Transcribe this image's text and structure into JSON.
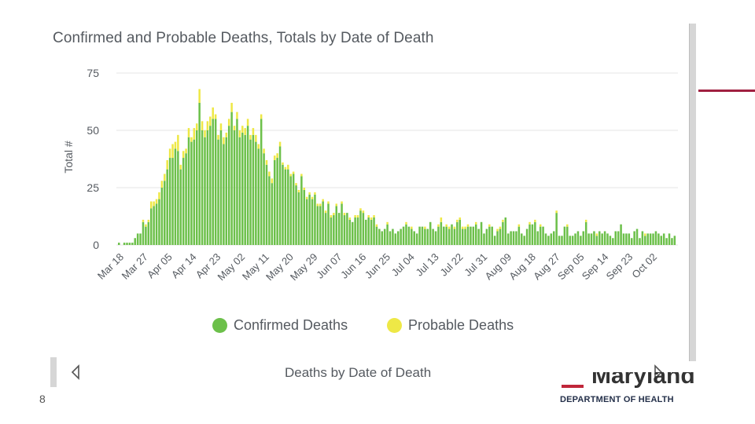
{
  "slide": {
    "page_number": "8",
    "org_word": "Maryland",
    "department": "DEPARTMENT OF HEALTH"
  },
  "tableau": {
    "tab_caption": "Deaths by Date of Death",
    "prev_icon": "triangle-left-outline",
    "next_icon": "triangle-right-outline"
  },
  "colors": {
    "confirmed": "#6cc04a",
    "probable": "#eee846",
    "grid": "#e5e5e5",
    "text": "#555a60",
    "accent": "#a02040"
  },
  "chart_data": {
    "type": "bar",
    "stacked": true,
    "title": "Confirmed and Probable Deaths, Totals by Date of Death",
    "xlabel": "",
    "ylabel": "Total #",
    "ylim": [
      0,
      75
    ],
    "yticks": [
      0,
      25,
      50,
      75
    ],
    "grid": true,
    "legend_position": "bottom",
    "x_start": "Mar 18",
    "x_end": "Oct 07",
    "x_tick_labels": [
      "Mar 18",
      "Mar 27",
      "Apr 05",
      "Apr 14",
      "Apr 23",
      "May 02",
      "May 11",
      "May 20",
      "May 29",
      "Jun 07",
      "Jun 16",
      "Jun 25",
      "Jul 04",
      "Jul 13",
      "Jul 22",
      "Jul 31",
      "Aug 09",
      "Aug 18",
      "Aug 27",
      "Sep 05",
      "Sep 14",
      "Sep 23",
      "Oct 02"
    ],
    "series": [
      {
        "name": "Confirmed Deaths",
        "values": [
          1,
          0,
          1,
          1,
          1,
          1,
          3,
          5,
          5,
          10,
          8,
          10,
          16,
          17,
          18,
          20,
          25,
          28,
          33,
          38,
          38,
          42,
          41,
          33,
          38,
          40,
          47,
          45,
          46,
          50,
          62,
          50,
          47,
          50,
          52,
          55,
          55,
          46,
          50,
          44,
          47,
          52,
          58,
          50,
          55,
          47,
          49,
          48,
          52,
          46,
          48,
          45,
          42,
          55,
          40,
          35,
          30,
          27,
          37,
          38,
          43,
          35,
          33,
          33,
          30,
          31,
          26,
          23,
          30,
          24,
          20,
          22,
          20,
          22,
          17,
          17,
          19,
          14,
          18,
          12,
          13,
          17,
          14,
          18,
          13,
          14,
          11,
          10,
          12,
          12,
          15,
          14,
          11,
          12,
          11,
          12,
          8,
          7,
          6,
          7,
          9,
          6,
          7,
          5,
          6,
          7,
          8,
          9,
          8,
          7,
          6,
          5,
          8,
          8,
          7,
          7,
          10,
          7,
          6,
          8,
          10,
          8,
          8,
          7,
          9,
          7,
          10,
          11,
          7,
          7,
          8,
          8,
          8,
          9,
          7,
          10,
          5,
          7,
          8,
          8,
          4,
          6,
          7,
          10,
          12,
          5,
          6,
          6,
          6,
          8,
          5,
          4,
          7,
          9,
          9,
          10,
          6,
          8,
          8,
          5,
          4,
          5,
          6,
          14,
          4,
          4,
          8,
          8,
          4,
          4,
          5,
          6,
          4,
          6,
          10,
          5,
          5,
          6,
          4,
          6,
          5,
          6,
          5,
          4,
          3,
          6,
          6,
          9,
          5,
          5,
          5,
          3,
          6,
          7,
          3,
          6,
          4,
          5,
          5,
          5,
          6,
          5,
          4,
          5,
          3,
          5,
          3,
          4
        ],
        "color": "#6cc04a"
      },
      {
        "name": "Probable Deaths",
        "values": [
          0,
          0,
          0,
          0,
          0,
          0,
          0,
          0,
          0,
          1,
          1,
          1,
          3,
          2,
          2,
          3,
          3,
          3,
          4,
          4,
          6,
          3,
          7,
          2,
          3,
          2,
          4,
          2,
          5,
          3,
          6,
          4,
          3,
          4,
          4,
          5,
          2,
          2,
          3,
          3,
          2,
          3,
          4,
          2,
          3,
          3,
          3,
          3,
          3,
          2,
          3,
          3,
          2,
          2,
          2,
          2,
          2,
          2,
          2,
          2,
          2,
          1,
          1,
          2,
          1,
          1,
          1,
          1,
          1,
          1,
          1,
          1,
          1,
          1,
          1,
          1,
          1,
          1,
          1,
          1,
          1,
          1,
          0,
          1,
          1,
          0,
          1,
          0,
          1,
          1,
          1,
          1,
          0,
          1,
          1,
          1,
          1,
          0,
          0,
          0,
          1,
          0,
          0,
          0,
          0,
          0,
          0,
          1,
          0,
          1,
          0,
          0,
          0,
          0,
          1,
          0,
          0,
          0,
          0,
          1,
          2,
          0,
          1,
          1,
          0,
          1,
          1,
          1,
          1,
          1,
          1,
          0,
          0,
          1,
          0,
          0,
          0,
          0,
          1,
          0,
          0,
          1,
          1,
          1,
          0,
          0,
          0,
          0,
          0,
          1,
          0,
          0,
          0,
          1,
          0,
          1,
          0,
          1,
          0,
          0,
          0,
          0,
          0,
          1,
          0,
          0,
          0,
          1,
          0,
          0,
          0,
          0,
          0,
          0,
          1,
          0,
          0,
          0,
          1,
          0,
          0,
          0,
          0,
          0,
          0,
          0,
          0,
          0,
          0,
          0,
          0,
          0,
          0,
          0,
          0,
          0,
          1,
          0,
          0,
          0,
          0,
          0,
          0,
          0,
          0,
          0,
          0,
          0
        ],
        "color": "#eee846"
      }
    ]
  }
}
